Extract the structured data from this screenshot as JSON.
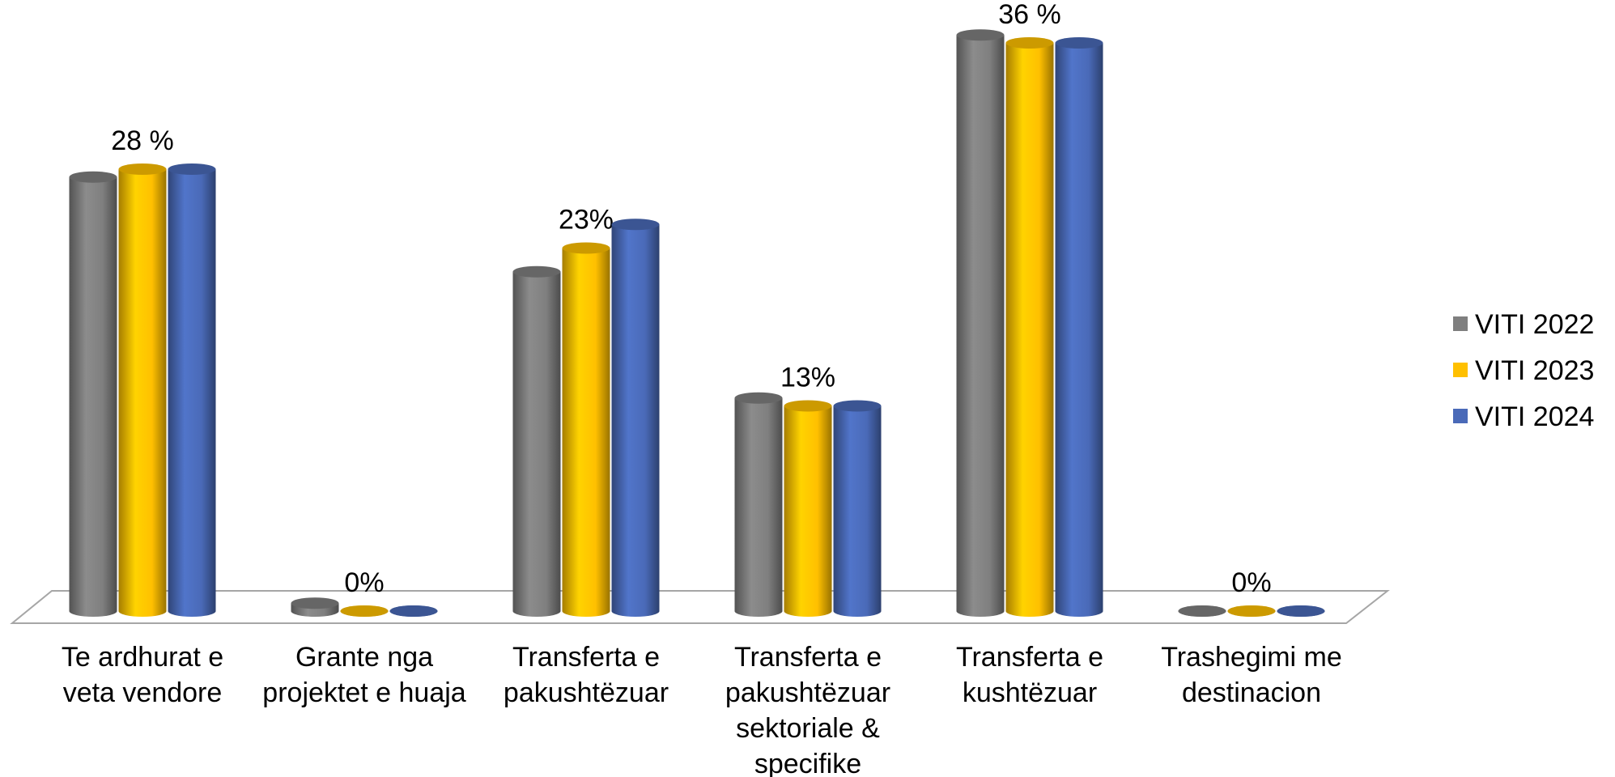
{
  "chart_data": {
    "type": "bar3d",
    "categories": [
      "Te ardhurat  e veta vendore",
      "Grante nga projektet e huaja",
      "Transferta e pakushtëzuar",
      "Transferta e pakushtëzuar sektoriale & specifike",
      "Transferta e kushtëzuar",
      "Trashegimi me destinacion"
    ],
    "series": [
      {
        "name": "VITI 2022",
        "color": "#7f7f7f",
        "values": [
          27.5,
          0.5,
          21.5,
          13.5,
          36.5,
          0
        ]
      },
      {
        "name": "VITI 2023",
        "color": "#ffc000",
        "values": [
          28,
          0,
          23,
          13,
          36,
          0
        ],
        "value_labels": [
          "28 %",
          "0%",
          "23%",
          "13%",
          "36 %",
          "0%"
        ]
      },
      {
        "name": "VITI 2024",
        "color": "#4a6ab8",
        "values": [
          28,
          0,
          24.5,
          13,
          36,
          0
        ]
      }
    ],
    "legend": "right"
  }
}
